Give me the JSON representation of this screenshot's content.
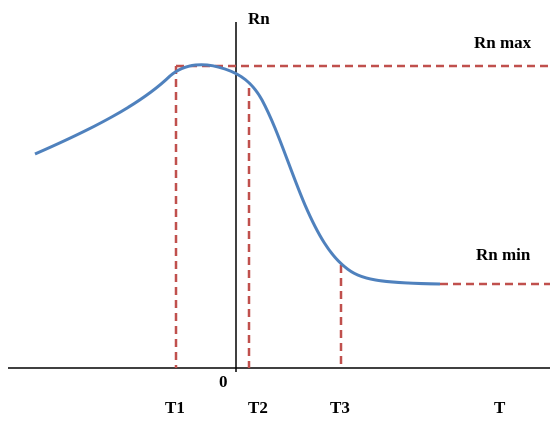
{
  "axis_labels": {
    "y": "Rn",
    "x": "T",
    "origin": "0"
  },
  "levels": {
    "max": "Rn max",
    "min": "Rn min"
  },
  "markers": [
    "T1",
    "T2",
    "T3"
  ]
}
